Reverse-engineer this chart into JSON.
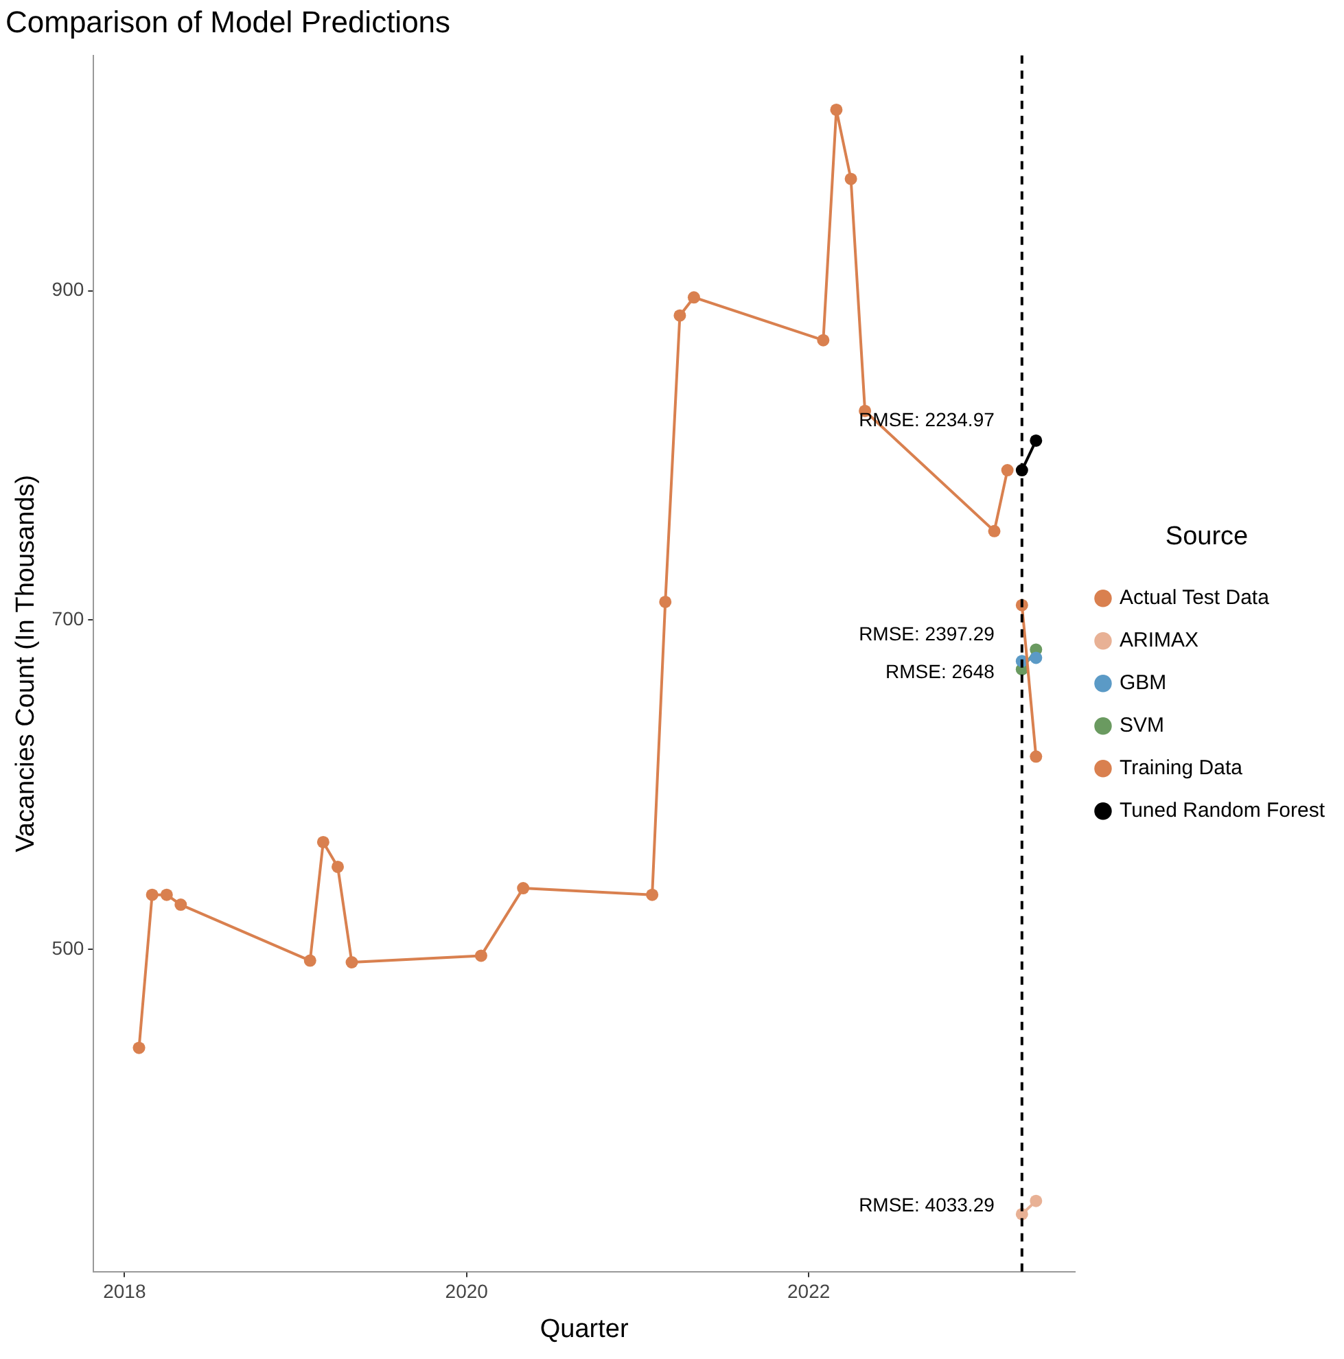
{
  "chart_data": {
    "type": "line",
    "title": "Comparison of Model Predictions",
    "xlabel": "Quarter",
    "ylabel": "Vacancies Count (In Thousands)",
    "legend_title": "Source",
    "legend": "right",
    "grid": false,
    "marker": "circle",
    "line_style": "solid",
    "xlim": [
      "2017-10-27",
      "2023-07-23"
    ],
    "xticks": [
      "2018",
      "2020",
      "2022"
    ],
    "ylim": [
      304,
      1043
    ],
    "yticks": [
      500,
      700,
      900
    ],
    "series": [
      {
        "name": "Actual Test Data",
        "color": "#d9804f",
        "x": [
          "2023-04",
          "2023-05"
        ],
        "values": [
          709,
          617
        ]
      },
      {
        "name": "ARIMAX",
        "color": "#e8b195",
        "x": [
          "2023-04",
          "2023-05"
        ],
        "values": [
          339,
          347
        ]
      },
      {
        "name": "GBM",
        "color": "#5b9ac6",
        "x": [
          "2023-04",
          "2023-05"
        ],
        "values": [
          675,
          677
        ]
      },
      {
        "name": "SVM",
        "color": "#6a9a60",
        "x": [
          "2023-04",
          "2023-05"
        ],
        "values": [
          670,
          682
        ]
      },
      {
        "name": "Training Data",
        "color": "#d9804f",
        "x": [
          "2018-02",
          "2018-03",
          "2018-04",
          "2018-05",
          "2019-02",
          "2019-03",
          "2019-04",
          "2019-05",
          "2020-02",
          "2020-05",
          "2021-02",
          "2021-03",
          "2021-04",
          "2021-05",
          "2022-02",
          "2022-03",
          "2022-04",
          "2022-05",
          "2023-02",
          "2023-03"
        ],
        "values": [
          440,
          533,
          533,
          527,
          493,
          565,
          550,
          492,
          496,
          537,
          533,
          711,
          885,
          896,
          870,
          1010,
          968,
          827,
          754,
          791
        ]
      },
      {
        "name": "Tuned Random Forest",
        "color": "#000000",
        "x": [
          "2023-04",
          "2023-05"
        ],
        "values": [
          791,
          809
        ]
      }
    ],
    "ref_lines": [
      {
        "axis": "x",
        "value": "2023-04",
        "color": "#000000",
        "line_style": "dashed"
      }
    ],
    "annotations": [
      {
        "text": "RMSE: 2234.97",
        "x": "2023-04",
        "y": 821
      },
      {
        "text": "RMSE: 2397.29",
        "x": "2023-04",
        "y": 691
      },
      {
        "text": "RMSE: 2648",
        "x": "2023-04",
        "y": 668
      },
      {
        "text": "RMSE: 4033.29",
        "x": "2023-04",
        "y": 344
      }
    ]
  }
}
